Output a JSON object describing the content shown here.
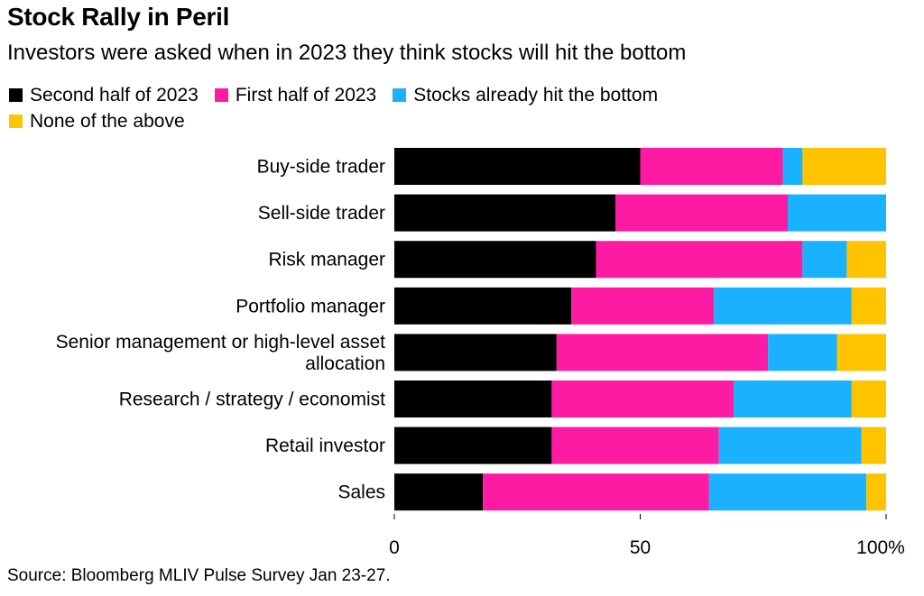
{
  "title": "Stock Rally in Peril",
  "subtitle": "Investors were asked when in 2023 they think stocks will hit the bottom",
  "source": "Source: Bloomberg MLIV Pulse Survey Jan 23-27.",
  "chart_data": {
    "type": "bar",
    "orientation": "horizontal",
    "stacked": true,
    "categories": [
      "Buy-side trader",
      "Sell-side trader",
      "Risk manager",
      "Portfolio manager",
      "Senior management or high-level asset allocation",
      "Research / strategy / economist",
      "Retail investor",
      "Sales"
    ],
    "category_label_lines": [
      [
        "Buy-side trader"
      ],
      [
        "Sell-side trader"
      ],
      [
        "Risk manager"
      ],
      [
        "Portfolio manager"
      ],
      [
        "Senior management or high-level asset",
        "allocation"
      ],
      [
        "Research / strategy / economist"
      ],
      [
        "Retail investor"
      ],
      [
        "Sales"
      ]
    ],
    "series": [
      {
        "name": "Second half of 2023",
        "color": "#000000",
        "values": [
          50,
          45,
          41,
          36,
          33,
          32,
          32,
          18
        ]
      },
      {
        "name": "First half of 2023",
        "color": "#ff1aa3",
        "values": [
          29,
          35,
          42,
          29,
          43,
          37,
          34,
          46
        ]
      },
      {
        "name": "Stocks already hit the bottom",
        "color": "#1ab2ff",
        "values": [
          4,
          20,
          9,
          28,
          14,
          24,
          29,
          32
        ]
      },
      {
        "name": "None of the above",
        "color": "#ffc300",
        "values": [
          17,
          0,
          8,
          7,
          10,
          7,
          5,
          4
        ]
      }
    ],
    "xlim": [
      0,
      100
    ],
    "xticks": [
      0,
      50,
      100
    ],
    "xtick_labels": [
      "0",
      "50",
      "100%"
    ],
    "xlabel": "",
    "ylabel": "",
    "grid": false,
    "legend_position": "top-left"
  }
}
